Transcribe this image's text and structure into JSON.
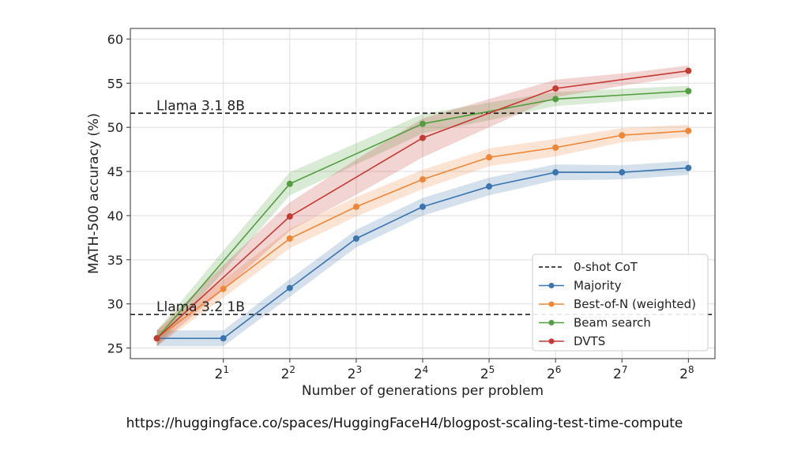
{
  "chart_data": {
    "type": "line",
    "title": "",
    "xlabel": "Number of generations per problem",
    "ylabel": "MATH-500 accuracy (%)",
    "x": [
      0,
      1,
      2,
      3,
      4,
      5,
      6,
      7,
      8
    ],
    "x_tick_base": "2",
    "x_tick_exponents": [
      "1",
      "2",
      "3",
      "4",
      "5",
      "6",
      "7",
      "8"
    ],
    "x_scale": "log2",
    "ylim": [
      25,
      60
    ],
    "y_ticks": [
      "25",
      "30",
      "35",
      "40",
      "45",
      "50",
      "55",
      "60"
    ],
    "grid": true,
    "legend_position": "lower-right",
    "reference_lines": [
      {
        "label": "Llama 3.1 8B",
        "y": 51.6
      },
      {
        "label": "Llama 3.2 1B",
        "y": 28.8
      }
    ],
    "reference_legend_label": "0-shot CoT",
    "series": [
      {
        "name": "Majority",
        "color": "#3b75af",
        "values": [
          26.1,
          26.1,
          31.8,
          37.4,
          41.0,
          43.3,
          44.9,
          44.9,
          45.4
        ],
        "band": [
          0.9,
          0.9,
          1.0,
          1.0,
          1.0,
          1.0,
          0.9,
          0.8,
          0.8
        ]
      },
      {
        "name": "Best-of-N (weighted)",
        "color": "#ef8636",
        "values": [
          26.1,
          31.7,
          37.4,
          41.0,
          44.1,
          46.6,
          47.7,
          49.1,
          49.6
        ],
        "band": [
          0.9,
          1.0,
          1.1,
          1.1,
          1.1,
          1.0,
          1.0,
          0.8,
          0.7
        ]
      },
      {
        "name": "Beam search",
        "color": "#519e3e",
        "values": [
          26.1,
          null,
          43.6,
          null,
          50.4,
          null,
          53.2,
          null,
          54.1
        ],
        "band": [
          0.9,
          1.2,
          1.3,
          1.2,
          1.1,
          1.0,
          0.8,
          0.7,
          0.6
        ]
      },
      {
        "name": "DVTS",
        "color": "#c53a32",
        "values": [
          26.1,
          null,
          39.9,
          null,
          48.8,
          null,
          54.4,
          null,
          56.4
        ],
        "band": [
          0.9,
          1.4,
          1.6,
          2.0,
          2.2,
          1.6,
          1.0,
          0.7,
          0.6
        ]
      }
    ]
  },
  "source_url": "https://huggingface.co/spaces/HuggingFaceH4/blogpost-scaling-test-time-compute"
}
